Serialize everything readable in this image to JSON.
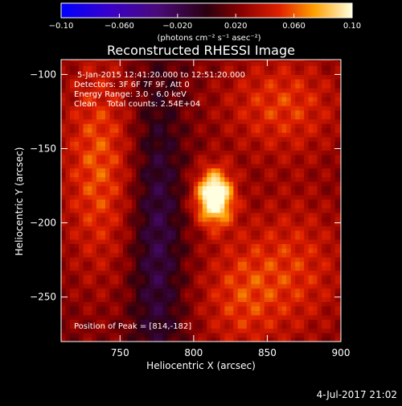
{
  "chart_data": {
    "type": "heatmap",
    "title": "Reconstructed RHESSI Image",
    "xlabel": "Heliocentric X (arcsec)",
    "ylabel": "Heliocentric Y (arcsec)",
    "xlim": [
      710,
      900
    ],
    "ylim": [
      -280,
      -90
    ],
    "x_ticks": [
      750,
      800,
      850,
      900
    ],
    "y_ticks": [
      -100,
      -150,
      -200,
      -250
    ],
    "colorbar": {
      "range": [
        -0.1,
        0.1
      ],
      "tick_values": [
        -0.1,
        -0.06,
        -0.02,
        0.02,
        0.06,
        0.1
      ],
      "tick_labels": [
        "−0.10",
        "−0.060",
        "−0.020",
        "0.020",
        "0.060",
        "0.10"
      ],
      "label": "(photons cm⁻² s⁻¹ asec⁻²)"
    },
    "annotations": {
      "time_range": "5-Jan-2015 12:41:20.000 to 12:51:20.000",
      "detectors": "Detectors: 3F 6F 7F 9F, Att 0",
      "energy": "Energy Range: 3.0 - 6.0 keV",
      "method": "Clean    Total counts: 2.54E+04",
      "peak": "Position of Peak = [814,-182]"
    },
    "peak": [
      814,
      -182
    ],
    "features": [
      {
        "kind": "source",
        "x": 814,
        "y": -182,
        "sx": 9,
        "sy": 13,
        "value": 0.1
      },
      {
        "kind": "band",
        "x": 735,
        "y": -160,
        "sx": 18,
        "sy": 55,
        "value": 0.04
      },
      {
        "kind": "band",
        "x": 775,
        "y": -210,
        "sx": 12,
        "sy": 80,
        "value": -0.035
      },
      {
        "kind": "region",
        "x": 860,
        "y": -120,
        "sx": 30,
        "sy": 25,
        "value": 0.035
      },
      {
        "kind": "region",
        "x": 870,
        "y": -230,
        "sx": 25,
        "sy": 35,
        "value": 0.03
      },
      {
        "kind": "band",
        "x": 830,
        "y": -250,
        "sx": 20,
        "sy": 30,
        "value": 0.03
      }
    ],
    "footer_date": "4-Jul-2017 21:02"
  }
}
